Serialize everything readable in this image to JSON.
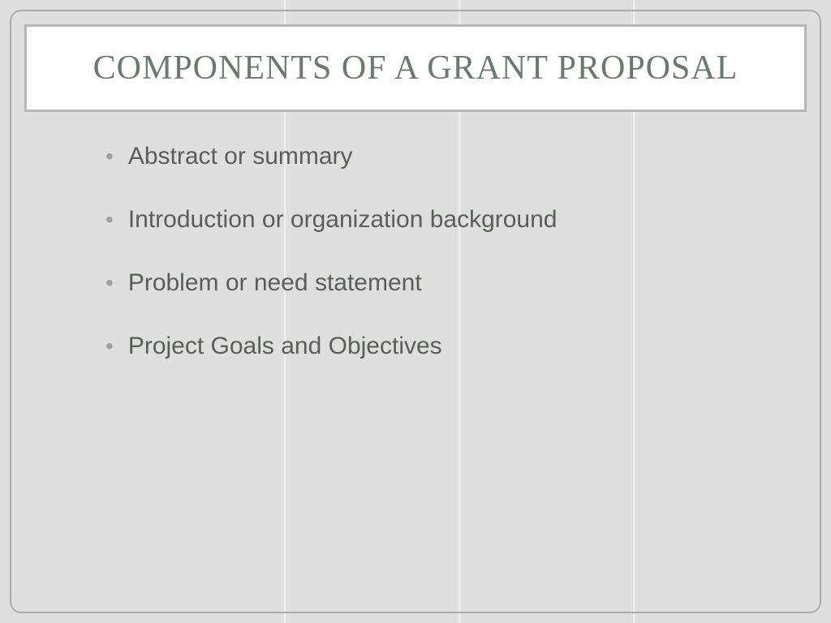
{
  "slide": {
    "title": "COMPONENTS OF A GRANT PROPOSAL",
    "bullets": [
      "Abstract or summary",
      "Introduction or organization background",
      "Problem or need statement",
      "Project Goals and Objectives"
    ],
    "styling": {
      "background_color": "#dedfde",
      "frame_border_color": "#a9aca9",
      "frame_border_radius": 14,
      "title_box_bg": "#ffffff",
      "title_box_border": "#b4b7b4",
      "title_font_family": "Georgia",
      "title_font_size": 42,
      "title_color": "#6a7a6e",
      "bullet_font_family": "Century Gothic",
      "bullet_font_size": 30,
      "bullet_text_color": "#5a5e5a",
      "bullet_dot_color": "#9ba39b",
      "bullet_spacing": 42,
      "stripe_positions": [
        350,
        565,
        780
      ],
      "stripe_color": "#f0f0f0",
      "stripe_width": 3
    }
  }
}
